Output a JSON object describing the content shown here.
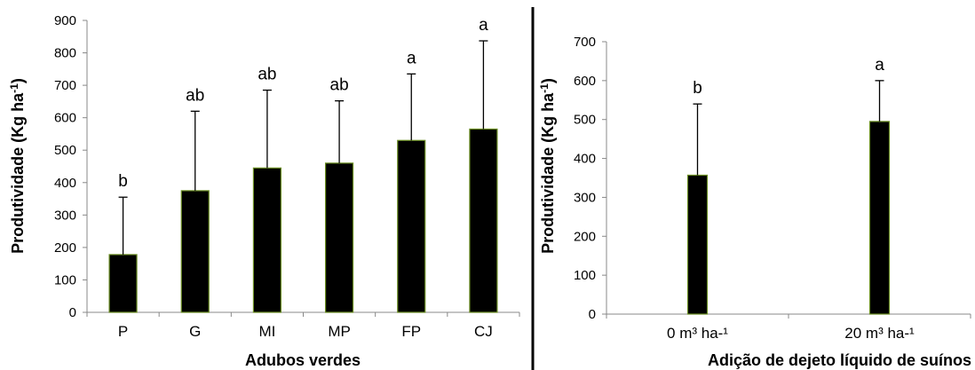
{
  "chart_data": [
    {
      "type": "bar",
      "xlabel": "Adubos verdes",
      "ylabel": "Produtividade (Kg ha",
      "ylabel_sup": "-1",
      "ylabel_end": ")",
      "ylim": [
        0,
        900
      ],
      "yticks": [
        "0",
        "100",
        "200",
        "300",
        "400",
        "500",
        "600",
        "700",
        "800",
        "900"
      ],
      "categories": [
        "P",
        "G",
        "MI",
        "MP",
        "FP",
        "CJ"
      ],
      "values": [
        178,
        375,
        445,
        460,
        530,
        565
      ],
      "error_upper": [
        355,
        620,
        685,
        652,
        735,
        837
      ],
      "significance": [
        "b",
        "ab",
        "ab",
        "ab",
        "a",
        "a"
      ],
      "bar_color": "#000000",
      "bar_edge_color": "#6b8e23",
      "grid": false
    },
    {
      "type": "bar",
      "xlabel": "Adição de dejeto líquido de suínos",
      "ylabel": "Produtividade (Kg ha",
      "ylabel_sup": "-1",
      "ylabel_end": ")",
      "ylim": [
        0,
        700
      ],
      "yticks": [
        "0",
        "100",
        "200",
        "300",
        "400",
        "500",
        "600",
        "700"
      ],
      "categories": [
        "0 m³ ha-¹",
        "20 m³ ha-¹"
      ],
      "values": [
        357,
        495
      ],
      "error_upper": [
        540,
        600
      ],
      "significance": [
        "b",
        "a"
      ],
      "bar_color": "#000000",
      "bar_edge_color": "#6b8e23",
      "grid": false
    }
  ]
}
